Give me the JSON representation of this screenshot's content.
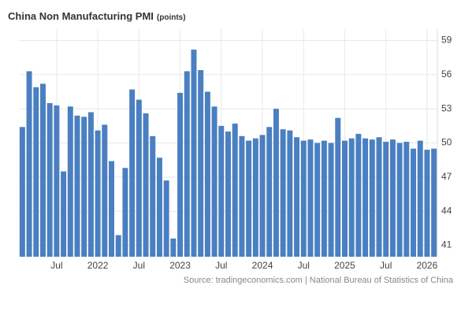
{
  "chart_data": {
    "type": "bar",
    "title": "China Non Manufacturing PMI",
    "subtitle": "(points)",
    "source": "Source: tradingeconomics.com | National Bureau of Statistics of China",
    "color": "#4a7fc1",
    "categories": [
      null,
      null,
      null,
      null,
      null,
      "Jul",
      null,
      null,
      null,
      null,
      null,
      "2022",
      null,
      null,
      null,
      null,
      null,
      "Jul",
      null,
      null,
      null,
      null,
      null,
      "2023",
      null,
      null,
      null,
      null,
      null,
      "Jul",
      null,
      null,
      null,
      null,
      null,
      "2024",
      null,
      null,
      null,
      null,
      null,
      "Jul",
      null,
      null,
      null,
      null,
      null,
      "2025",
      null,
      null,
      null,
      null,
      null,
      "Jul",
      null,
      null,
      null,
      null,
      null,
      "2026",
      null
    ],
    "values": [
      51.4,
      56.3,
      54.9,
      55.2,
      53.5,
      53.3,
      47.5,
      53.2,
      52.4,
      52.3,
      52.7,
      51.1,
      51.6,
      48.4,
      41.9,
      47.8,
      54.7,
      53.8,
      52.6,
      50.6,
      48.7,
      46.7,
      41.6,
      54.4,
      56.3,
      58.2,
      56.4,
      54.5,
      53.2,
      51.5,
      51.0,
      51.7,
      50.6,
      50.2,
      50.4,
      50.7,
      51.4,
      53.0,
      51.2,
      51.1,
      50.5,
      50.2,
      50.3,
      50.0,
      50.2,
      50.0,
      52.2,
      50.2,
      50.4,
      50.8,
      50.4,
      50.3,
      50.5,
      50.1,
      50.3,
      50.0,
      50.1,
      49.5,
      50.2,
      49.4,
      49.5
    ],
    "ylim": [
      40,
      60
    ],
    "yticks": [
      41,
      44,
      47,
      50,
      53,
      56,
      59
    ],
    "grid": true
  }
}
